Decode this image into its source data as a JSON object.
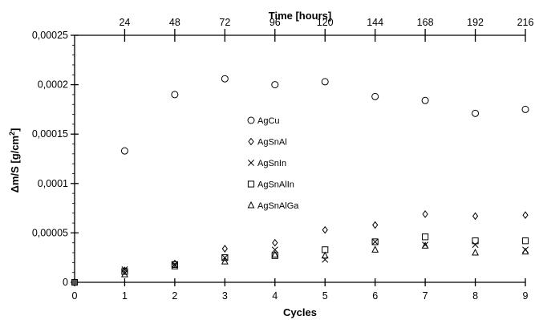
{
  "chart_data": {
    "type": "scatter",
    "xlabel": "Cycles",
    "x2label": "Time [hours]",
    "ylabel_prefix": "Δm/S [g/cm",
    "ylabel_sup": "2",
    "ylabel_suffix": "]",
    "xlim": [
      0,
      9
    ],
    "ylim": [
      0,
      0.00025
    ],
    "x_ticks": [
      "0",
      "1",
      "2",
      "3",
      "4",
      "5",
      "6",
      "7",
      "8",
      "9"
    ],
    "x2_ticks": [
      "24",
      "48",
      "72",
      "96",
      "120",
      "144",
      "168",
      "192",
      "216"
    ],
    "y_ticks": [
      "0",
      "0,00005",
      "0,0001",
      "0,00015",
      "0,0002",
      "0,00025"
    ],
    "grid": false,
    "legend_position": "center",
    "series": [
      {
        "name": "AgCu",
        "marker": "circle",
        "x": [
          0,
          1,
          2,
          3,
          4,
          5,
          6,
          7,
          8,
          9
        ],
        "y": [
          0,
          0.000133,
          0.00019,
          0.000206,
          0.0002,
          0.000203,
          0.000188,
          0.000184,
          0.000171,
          0.000175
        ]
      },
      {
        "name": "AgSnAl",
        "marker": "diamond",
        "x": [
          0,
          1,
          2,
          3,
          4,
          5,
          6,
          7,
          8,
          9
        ],
        "y": [
          0,
          1.2e-05,
          1.9e-05,
          3.4e-05,
          4e-05,
          5.3e-05,
          5.8e-05,
          6.9e-05,
          6.7e-05,
          6.8e-05
        ]
      },
      {
        "name": "AgSnIn",
        "marker": "cross",
        "x": [
          0,
          1,
          2,
          3,
          4,
          5,
          6,
          7,
          8,
          9
        ],
        "y": [
          0,
          1.3e-05,
          1.8e-05,
          2.5e-05,
          3.3e-05,
          2.3e-05,
          4.1e-05,
          3.8e-05,
          3.8e-05,
          3.3e-05
        ]
      },
      {
        "name": "AgSnAlIn",
        "marker": "square",
        "x": [
          0,
          1,
          2,
          3,
          4,
          5,
          6,
          7,
          8,
          9
        ],
        "y": [
          0,
          1.1e-05,
          1.8e-05,
          2.5e-05,
          2.7e-05,
          3.3e-05,
          4.1e-05,
          4.6e-05,
          4.2e-05,
          4.2e-05
        ]
      },
      {
        "name": "AgSnAlGa",
        "marker": "triangle",
        "x": [
          0,
          1,
          2,
          3,
          4,
          5,
          6,
          7,
          8,
          9
        ],
        "y": [
          0,
          8e-06,
          1.6e-05,
          2.1e-05,
          2.8e-05,
          2.7e-05,
          3.3e-05,
          3.7e-05,
          3e-05,
          3.1e-05
        ]
      }
    ]
  }
}
